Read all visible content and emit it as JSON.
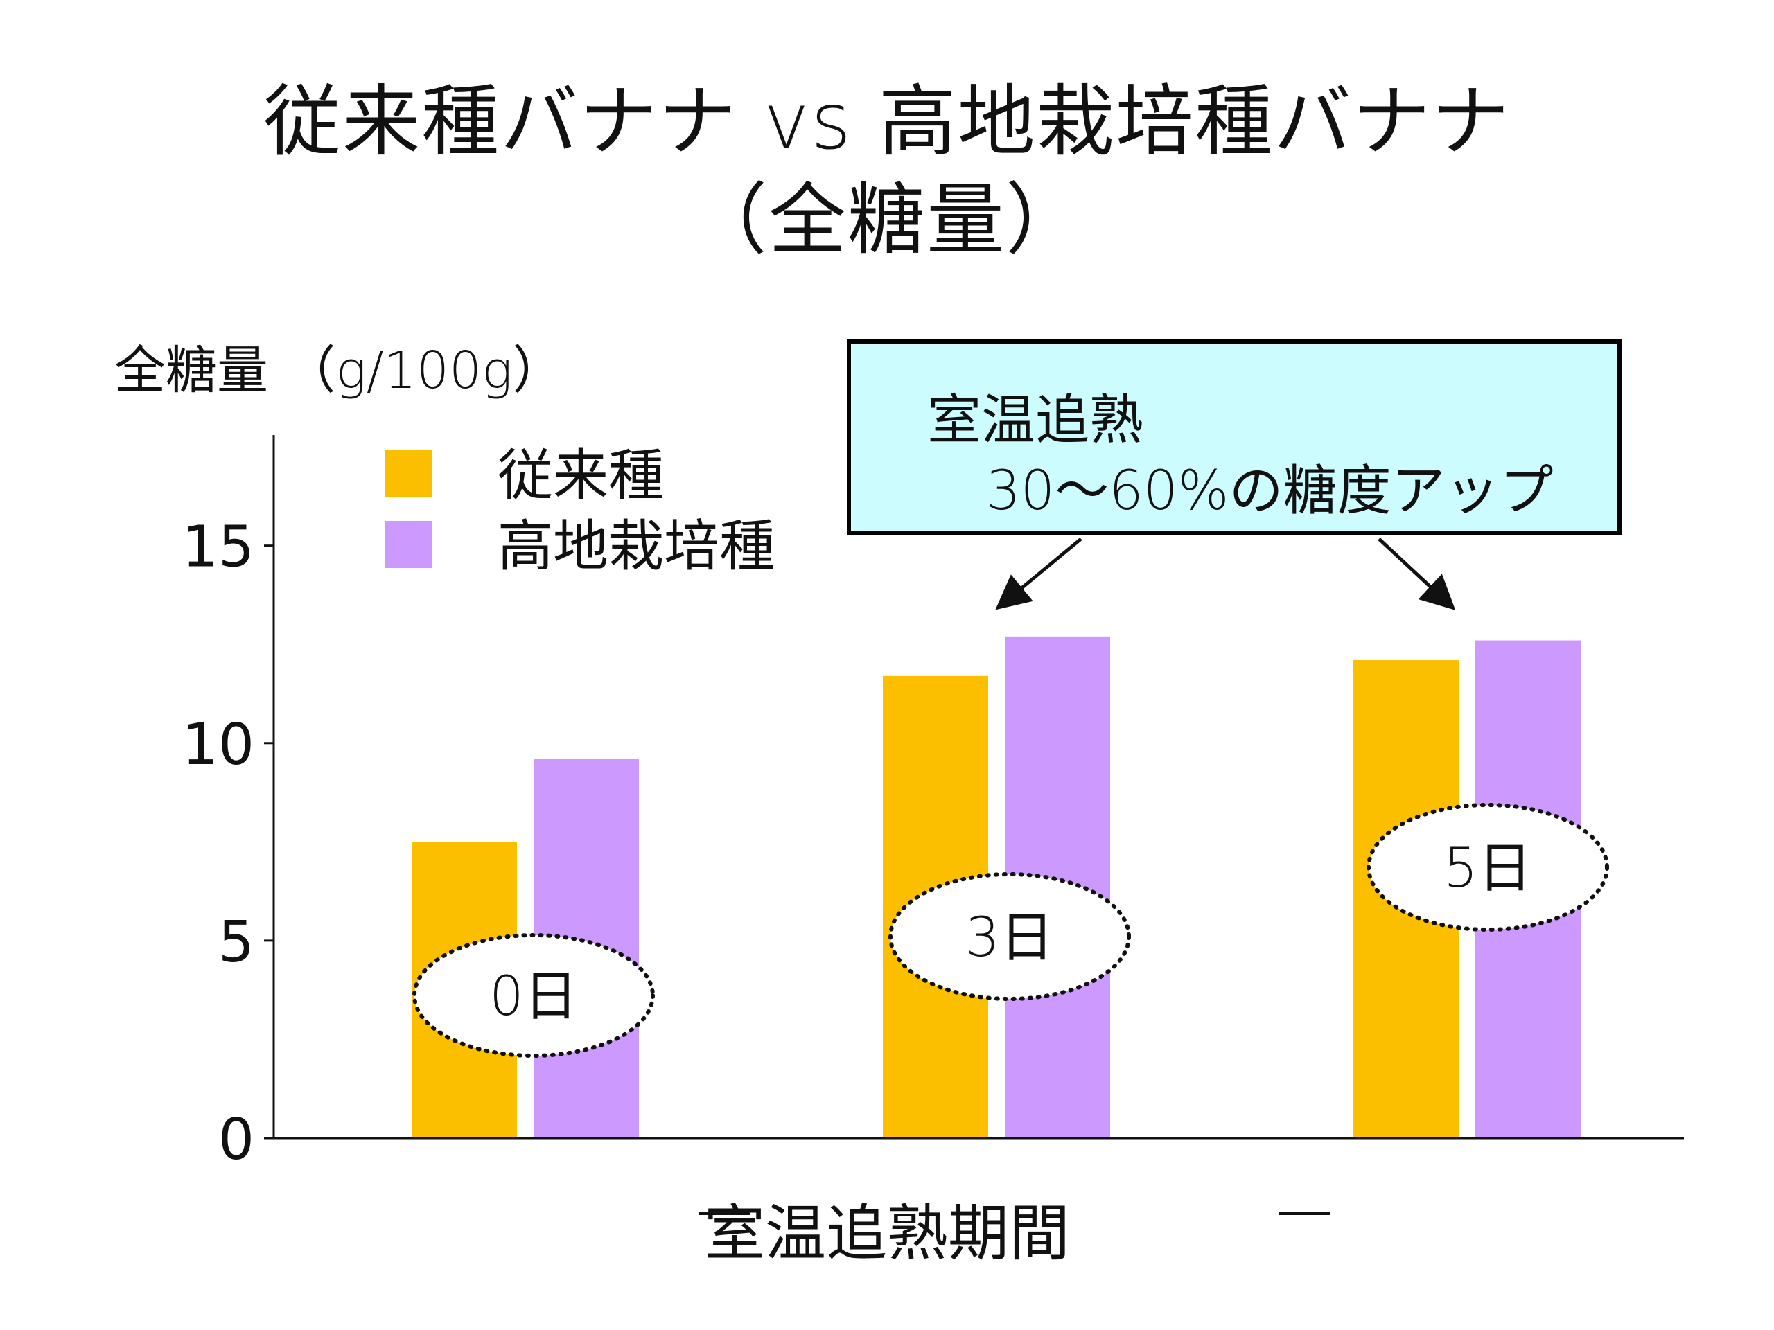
{
  "title": {
    "line1": "従来種バナナ vs 高地栽培種バナナ",
    "line2": "（全糖量）"
  },
  "callout": {
    "line1": "室温追熟",
    "line2": "30～60%の糖度アップ"
  },
  "chart_data": {
    "type": "bar",
    "ylabel": "全糖量 （g/100g）",
    "xlabel": "室温追熟期間",
    "categories": [
      "0日",
      "3日",
      "5日"
    ],
    "series": [
      {
        "name": "従来種",
        "color": "#fbbf00",
        "values": [
          7.5,
          11.7,
          12.1
        ]
      },
      {
        "name": "高地栽培種",
        "color": "#cc99ff",
        "values": [
          9.6,
          12.7,
          12.6
        ]
      }
    ],
    "ylim": [
      0,
      17.8
    ],
    "yticks": [
      0,
      5,
      10,
      15
    ],
    "legend_position": "top-left",
    "grid": false
  }
}
